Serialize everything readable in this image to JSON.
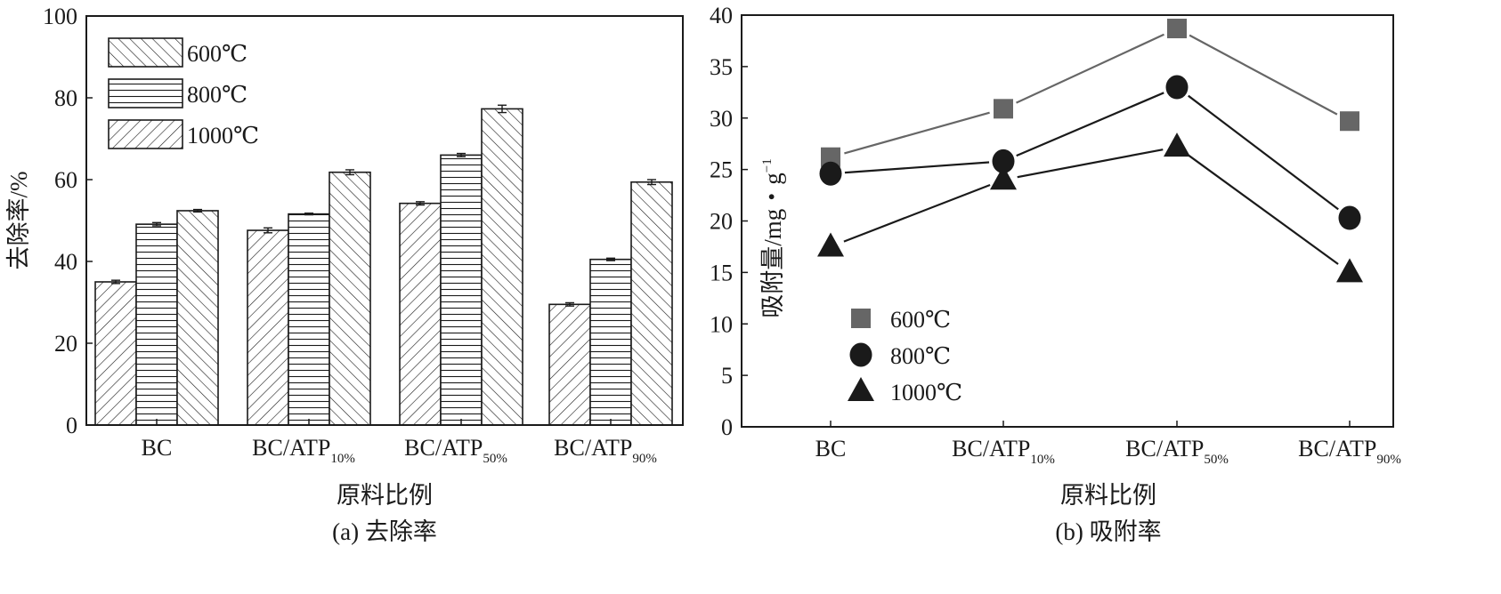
{
  "chart_data": [
    {
      "type": "bar",
      "caption": "(a) 去除率",
      "xlabel": "原料比例",
      "ylabel": "去除率/%",
      "ylim": [
        0,
        100
      ],
      "yticks": [
        "0",
        "20",
        "40",
        "60",
        "80",
        "100"
      ],
      "categories": [
        {
          "main": "BC",
          "sub": ""
        },
        {
          "main": "BC/ATP",
          "sub": "10%"
        },
        {
          "main": "BC/ATP",
          "sub": "50%"
        },
        {
          "main": "BC/ATP",
          "sub": "90%"
        }
      ],
      "legend_position": "top-left",
      "series": [
        {
          "name": "600℃",
          "values": [
            35.0,
            47.6,
            54.2,
            29.5
          ],
          "errors": [
            0.4,
            0.6,
            0.4,
            0.4
          ],
          "hatch": "diagonal"
        },
        {
          "name": "800℃",
          "values": [
            49.1,
            51.6,
            66.0,
            40.5
          ],
          "errors": [
            0.4,
            0.2,
            0.4,
            0.3
          ],
          "hatch": "horizontal"
        },
        {
          "name": "1000℃",
          "values": [
            52.4,
            61.8,
            77.3,
            59.4
          ],
          "errors": [
            0.3,
            0.6,
            0.9,
            0.6
          ],
          "hatch": "diagonal"
        }
      ],
      "grid": false
    },
    {
      "type": "line",
      "caption": "(b) 吸附率",
      "xlabel": "原料比例",
      "ylabel": "吸附量/mg・g",
      "ylabel_sup": "−1",
      "ylim": [
        0,
        40
      ],
      "yticks": [
        "0",
        "5",
        "10",
        "15",
        "20",
        "25",
        "30",
        "35",
        "40"
      ],
      "categories": [
        {
          "main": "BC",
          "sub": ""
        },
        {
          "main": "BC/ATP",
          "sub": "10%"
        },
        {
          "main": "BC/ATP",
          "sub": "50%"
        },
        {
          "main": "BC/ATP",
          "sub": "90%"
        }
      ],
      "legend_position": "bottom-left",
      "series": [
        {
          "name": "600℃",
          "values": [
            26.2,
            30.9,
            38.7,
            29.7
          ],
          "marker": "square",
          "color": "#666666"
        },
        {
          "name": "800℃",
          "values": [
            24.6,
            25.8,
            33.0,
            20.3
          ],
          "marker": "circle",
          "color": "#1a1a1a"
        },
        {
          "name": "1000℃",
          "values": [
            17.5,
            24.0,
            27.2,
            15.0
          ],
          "marker": "triangle",
          "color": "#1a1a1a"
        }
      ],
      "grid": false
    }
  ]
}
